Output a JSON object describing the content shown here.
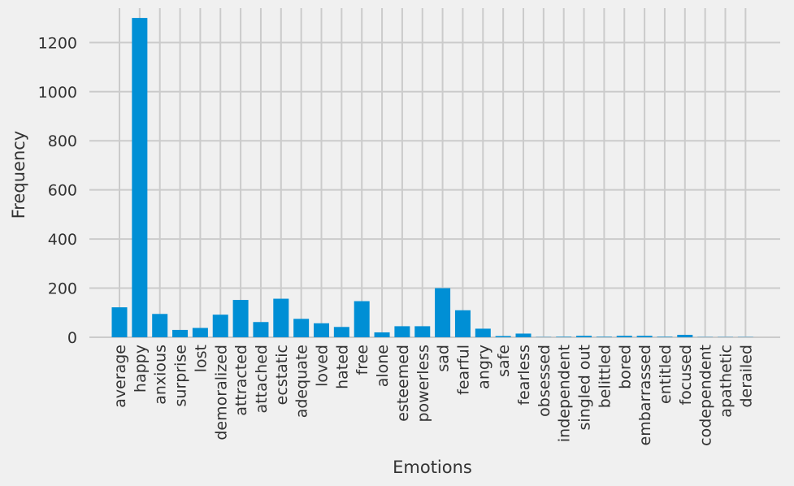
{
  "chart_data": {
    "type": "bar",
    "xlabel": "Emotions",
    "ylabel": "Frequency",
    "ylim": [
      0,
      1340
    ],
    "yticks": [
      0,
      200,
      400,
      600,
      800,
      1000,
      1200
    ],
    "grid": true,
    "bar_color": "#008fd5",
    "background_color": "#f0f0f0",
    "grid_color": "#cbcbcb",
    "categories": [
      "average",
      "happy",
      "anxious",
      "surprise",
      "lost",
      "demoralized",
      "attracted",
      "attached",
      "ecstatic",
      "adequate",
      "loved",
      "hated",
      "free",
      "alone",
      "esteemed",
      "powerless",
      "sad",
      "fearful",
      "angry",
      "safe",
      "fearless",
      "obsessed",
      "independent",
      "singled out",
      "belittled",
      "bored",
      "embarrassed",
      "entitled",
      "focused",
      "codependent",
      "apathetic",
      "derailed"
    ],
    "values": [
      122,
      1300,
      95,
      30,
      38,
      92,
      152,
      62,
      157,
      75,
      57,
      42,
      147,
      20,
      45,
      45,
      200,
      110,
      35,
      5,
      15,
      1,
      2,
      6,
      2,
      6,
      6,
      2,
      10,
      1,
      1,
      1
    ]
  }
}
